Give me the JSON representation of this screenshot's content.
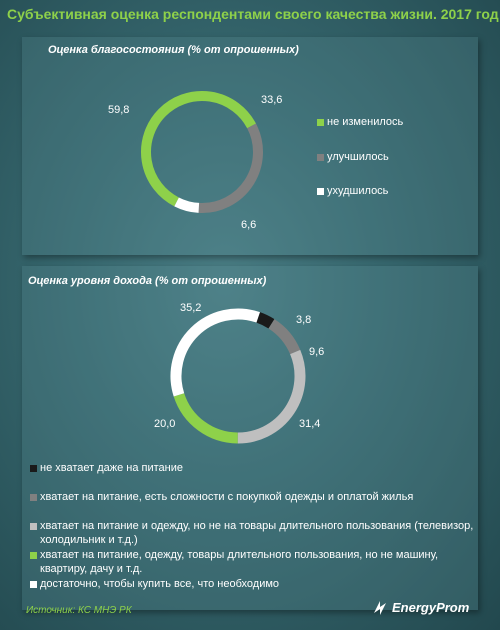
{
  "title": "Субъективная оценка респондентами своего качества жизни. 2017 год",
  "source": "Источник: КС МНЭ РК",
  "logo": {
    "text": "EnergyProm",
    "icon": "bolt-icon"
  },
  "colors": {
    "green": "#8ed14a",
    "gray": "#808080",
    "lightgray": "#bfbfbf",
    "white": "#ffffff",
    "black": "#1a1a1a",
    "background": "#2d5f66"
  },
  "chart_data": [
    {
      "type": "pie",
      "title": "Оценка благосостояния (% от опрошенных)",
      "categories": [
        "не изменилось",
        "улучшилось",
        "ухудшилось"
      ],
      "values": [
        59.8,
        33.6,
        6.6
      ],
      "labels": [
        "59,8",
        "33,6",
        "6,6"
      ],
      "colors": [
        "#8ed14a",
        "#808080",
        "#ffffff"
      ],
      "legend": "right"
    },
    {
      "type": "pie",
      "title": "Оценка уровня дохода (% от опрошенных)",
      "categories": [
        "не хватает даже на питание",
        "хватает на питание, есть сложности с покупкой одежды и оплатой жилья",
        "хватает на питание и одежду, но не на товары длительного пользования (телевизор, холодильник и т.д.)",
        "хватает на питание, одежду, товары длительного пользования, но не машину, квартиру, дачу и т.д.",
        "достаточно, чтобы купить все, что необходимо"
      ],
      "values": [
        3.8,
        9.6,
        31.4,
        20.0,
        35.2
      ],
      "labels": [
        "3,8",
        "9,6",
        "31,4",
        "20,0",
        "35,2"
      ],
      "colors": [
        "#1a1a1a",
        "#808080",
        "#bfbfbf",
        "#8ed14a",
        "#ffffff"
      ],
      "legend": "bottom"
    }
  ]
}
